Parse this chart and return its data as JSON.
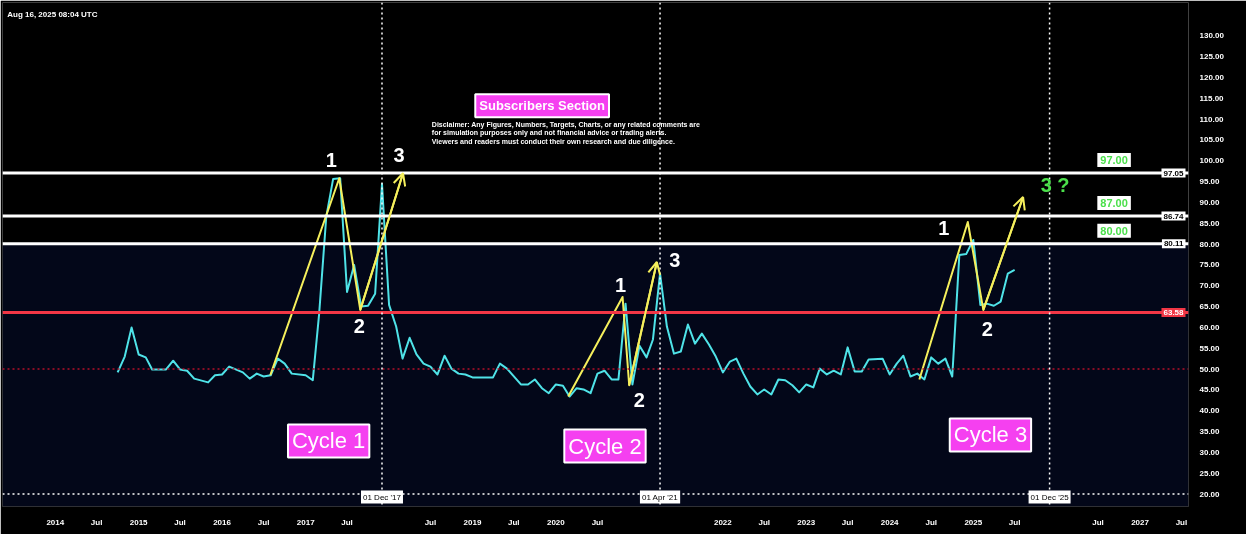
{
  "chart_data": {
    "type": "line",
    "annotations": [
      "Aug 16, 2025 08:04 UTC",
      "Subscribers Section",
      "Disclaimer: Any Figures, Numbers, Targets, Charts, or any related comments are for simulation purposes only and not financial advice or trading alerts. Viewers and readers must conduct their own research and due diligence.",
      "Cycle 1",
      "Cycle 2",
      "Cycle 3",
      {
        "text": "1",
        "x": "2017-05-28",
        "y": 95.8
      },
      {
        "text": "2",
        "x": "2017-08-28",
        "y": 64.2
      },
      {
        "text": "3",
        "x": "2018-03-03",
        "y": 97.0
      },
      {
        "text": "1",
        "x": "2020-10-19",
        "y": 67.3
      },
      {
        "text": "2",
        "x": "2020-11-17",
        "y": 46.1
      },
      {
        "text": "3",
        "x": "2021-03-18",
        "y": 75.7
      },
      {
        "text": "1",
        "x": "2024-12-08",
        "y": 85.3
      },
      {
        "text": "2",
        "x": "2025-02-14",
        "y": 64.2
      },
      {
        "text": "3 ?",
        "x": "2025-08-07",
        "y": 91.3
      },
      {
        "text": "97.00",
        "x": "2026-05-01",
        "y": 97.05
      },
      {
        "text": "87.00",
        "x": "2026-05-01",
        "y": 86.74
      },
      {
        "text": "80.00",
        "x": "2026-05-01",
        "y": 80.11
      }
    ],
    "xlim": [
      "2013-05-15",
      "2027-08-01"
    ],
    "ylim": [
      17,
      138
    ],
    "xticks": [
      {
        "value": "2014-01-01",
        "label": "2014"
      },
      {
        "value": "2014-07-01",
        "label": "Jul"
      },
      {
        "value": "2015-01-01",
        "label": "2015"
      },
      {
        "value": "2015-07-01",
        "label": "Jul"
      },
      {
        "value": "2016-01-01",
        "label": "2016"
      },
      {
        "value": "2016-07-01",
        "label": "Jul"
      },
      {
        "value": "2017-01-01",
        "label": "2017"
      },
      {
        "value": "2017-07-01",
        "label": "Jul"
      },
      {
        "value": "2018-07-01",
        "label": "Jul"
      },
      {
        "value": "2019-01-01",
        "label": "2019"
      },
      {
        "value": "2019-07-01",
        "label": "Jul"
      },
      {
        "value": "2020-01-01",
        "label": "2020"
      },
      {
        "value": "2020-07-01",
        "label": "Jul"
      },
      {
        "value": "2022-01-01",
        "label": "2022"
      },
      {
        "value": "2022-07-01",
        "label": "Jul"
      },
      {
        "value": "2023-01-01",
        "label": "2023"
      },
      {
        "value": "2023-07-01",
        "label": "Jul"
      },
      {
        "value": "2024-01-01",
        "label": "2024"
      },
      {
        "value": "2024-07-01",
        "label": "Jul"
      },
      {
        "value": "2025-01-01",
        "label": "2025"
      },
      {
        "value": "2025-07-01",
        "label": "Jul"
      },
      {
        "value": "2026-07-01",
        "label": "Jul"
      },
      {
        "value": "2027-01-01",
        "label": "2027"
      },
      {
        "value": "2027-07-01",
        "label": "Jul"
      }
    ],
    "yticks": [
      {
        "value": 20,
        "label": "20.00"
      },
      {
        "value": 25,
        "label": "25.00"
      },
      {
        "value": 30,
        "label": "30.00"
      },
      {
        "value": 35,
        "label": "35.00"
      },
      {
        "value": 40,
        "label": "40.00"
      },
      {
        "value": 45,
        "label": "45.00"
      },
      {
        "value": 50,
        "label": "50.00"
      },
      {
        "value": 55,
        "label": "55.00"
      },
      {
        "value": 60,
        "label": "60.00"
      },
      {
        "value": 65,
        "label": "65.00"
      },
      {
        "value": 70,
        "label": "70.00"
      },
      {
        "value": 75,
        "label": "75.00"
      },
      {
        "value": 80,
        "label": "80.00"
      },
      {
        "value": 85,
        "label": "85.00"
      },
      {
        "value": 90,
        "label": "90.00"
      },
      {
        "value": 95,
        "label": "95.00"
      },
      {
        "value": 100,
        "label": "100.00"
      },
      {
        "value": 105,
        "label": "105.00"
      },
      {
        "value": 110,
        "label": "110.00"
      },
      {
        "value": 115,
        "label": "115.00"
      },
      {
        "value": 120,
        "label": "120.00"
      },
      {
        "value": 125,
        "label": "125.00"
      },
      {
        "value": 130,
        "label": "130.00"
      }
    ],
    "grid": false,
    "bands": [
      {
        "axis": "y",
        "from": 17,
        "to": 80.11,
        "color": "#030719"
      }
    ],
    "ref_lines": [
      {
        "axis": "y",
        "value": 97.05,
        "label": "97.05",
        "color": "#ffffff",
        "line_style": "solid"
      },
      {
        "axis": "y",
        "value": 86.74,
        "label": "86.74",
        "color": "#ffffff",
        "line_style": "solid"
      },
      {
        "axis": "y",
        "value": 80.11,
        "label": "80.11",
        "color": "#ffffff",
        "line_style": "solid"
      },
      {
        "axis": "y",
        "value": 63.58,
        "label": "63.58",
        "color": "#f23645",
        "line_style": "solid"
      },
      {
        "axis": "y",
        "value": 50,
        "color": "#b2102a",
        "line_style": "dotted"
      },
      {
        "axis": "y",
        "value": 20,
        "color": "#ffffff",
        "line_style": "dotted"
      },
      {
        "axis": "x",
        "value": "2017-12-01",
        "label": "01 Dec '17",
        "color": "#ffffff",
        "line_style": "dotted"
      },
      {
        "axis": "x",
        "value": "2021-04-01",
        "label": "01 Apr '21",
        "color": "#ffffff",
        "line_style": "dotted"
      },
      {
        "axis": "x",
        "value": "2025-12-01",
        "label": "01 Dec '25",
        "color": "#ffffff",
        "line_style": "dotted"
      }
    ],
    "series": [
      {
        "color": "#4fe3e8",
        "x": [
          "2014-10",
          "2014-11",
          "2014-12",
          "2015-01",
          "2015-02",
          "2015-03",
          "2015-05",
          "2015-06",
          "2015-07",
          "2015-08",
          "2015-09",
          "2015-11",
          "2015-12",
          "2016-01",
          "2016-02",
          "2016-04",
          "2016-05",
          "2016-06",
          "2016-07",
          "2016-08",
          "2016-09",
          "2016-10",
          "2016-11",
          "2017-01",
          "2017-02",
          "2017-03",
          "2017-04",
          "2017-05",
          "2017-06",
          "2017-07",
          "2017-08",
          "2017-09",
          "2017-10",
          "2017-11",
          "2017-12",
          "2018-01",
          "2018-02",
          "2018-03",
          "2018-04",
          "2018-05",
          "2018-06",
          "2018-07",
          "2018-08",
          "2018-09",
          "2018-10",
          "2018-11",
          "2018-12",
          "2019-01",
          "2019-04",
          "2019-05",
          "2019-06",
          "2019-08",
          "2019-09",
          "2019-10",
          "2019-11",
          "2019-12",
          "2020-01",
          "2020-02",
          "2020-03",
          "2020-04",
          "2020-05",
          "2020-06",
          "2020-07",
          "2020-08",
          "2020-09",
          "2020-10",
          "2020-11",
          "2020-12",
          "2021-01",
          "2021-02",
          "2021-03",
          "2021-04",
          "2021-05",
          "2021-06",
          "2021-07",
          "2021-08",
          "2021-09",
          "2021-10",
          "2021-11",
          "2021-12",
          "2022-01",
          "2022-02",
          "2022-03",
          "2022-04",
          "2022-05",
          "2022-06",
          "2022-07",
          "2022-08",
          "2022-09",
          "2022-10",
          "2022-11",
          "2022-12",
          "2023-01",
          "2023-02",
          "2023-03",
          "2023-04",
          "2023-05",
          "2023-06",
          "2023-07",
          "2023-08",
          "2023-09",
          "2023-10",
          "2023-12",
          "2024-01",
          "2024-02",
          "2024-03",
          "2024-04",
          "2024-05",
          "2024-06",
          "2024-07",
          "2024-08",
          "2024-09",
          "2024-10",
          "2024-11",
          "2024-12",
          "2025-01",
          "2025-02",
          "2025-03",
          "2025-04",
          "2025-05",
          "2025-06",
          "2025-07"
        ],
        "values": [
          49.2,
          53.0,
          60.0,
          53.5,
          52.8,
          49.9,
          49.9,
          52.0,
          49.9,
          49.6,
          47.7,
          46.8,
          48.5,
          48.7,
          50.6,
          49.2,
          47.7,
          48.9,
          48.2,
          48.5,
          52.5,
          51.3,
          48.9,
          48.5,
          47.3,
          63.3,
          86.5,
          95.6,
          95.8,
          68.5,
          75.0,
          65.0,
          65.2,
          68.1,
          94.4,
          65.4,
          60.2,
          52.5,
          57.5,
          53.5,
          51.3,
          50.6,
          48.7,
          53.2,
          50.1,
          48.9,
          48.7,
          48.0,
          48.0,
          51.3,
          50.1,
          46.3,
          46.3,
          47.5,
          45.4,
          44.2,
          46.3,
          46.0,
          43.4,
          45.4,
          45.1,
          44.2,
          48.9,
          49.6,
          47.5,
          47.5,
          65.7,
          46.3,
          55.6,
          52.8,
          57.1,
          72.9,
          60.2,
          53.7,
          54.2,
          60.7,
          56.1,
          58.5,
          55.9,
          53.0,
          49.2,
          51.8,
          52.5,
          48.9,
          45.8,
          43.9,
          45.1,
          43.9,
          47.5,
          47.3,
          46.1,
          44.4,
          46.3,
          45.6,
          50.1,
          48.7,
          49.6,
          48.7,
          55.2,
          49.4,
          49.4,
          52.3,
          52.5,
          48.7,
          51.3,
          53.2,
          48.2,
          48.9,
          47.5,
          52.8,
          51.3,
          52.5,
          48.2,
          77.4,
          77.6,
          81.0,
          65.4,
          65.7,
          65.2,
          66.2,
          72.9,
          73.8
        ]
      },
      {
        "color": "#f5ef5c",
        "x": [
          "2016-07-30",
          "2017-05-28",
          "2017-08-28",
          "2018-03-03"
        ],
        "values": [
          48.5,
          95.8,
          64.2,
          97.0
        ]
      },
      {
        "color": "#f5ef5c",
        "x": [
          "2020-02-24",
          "2020-10-19",
          "2020-11-17",
          "2021-03-18"
        ],
        "values": [
          43.4,
          67.3,
          46.1,
          75.7
        ]
      },
      {
        "color": "#f5ef5c",
        "x": [
          "2024-05-10",
          "2024-12-08",
          "2025-02-14",
          "2025-08-07"
        ],
        "values": [
          47.5,
          85.3,
          64.2,
          91.3
        ]
      }
    ]
  }
}
